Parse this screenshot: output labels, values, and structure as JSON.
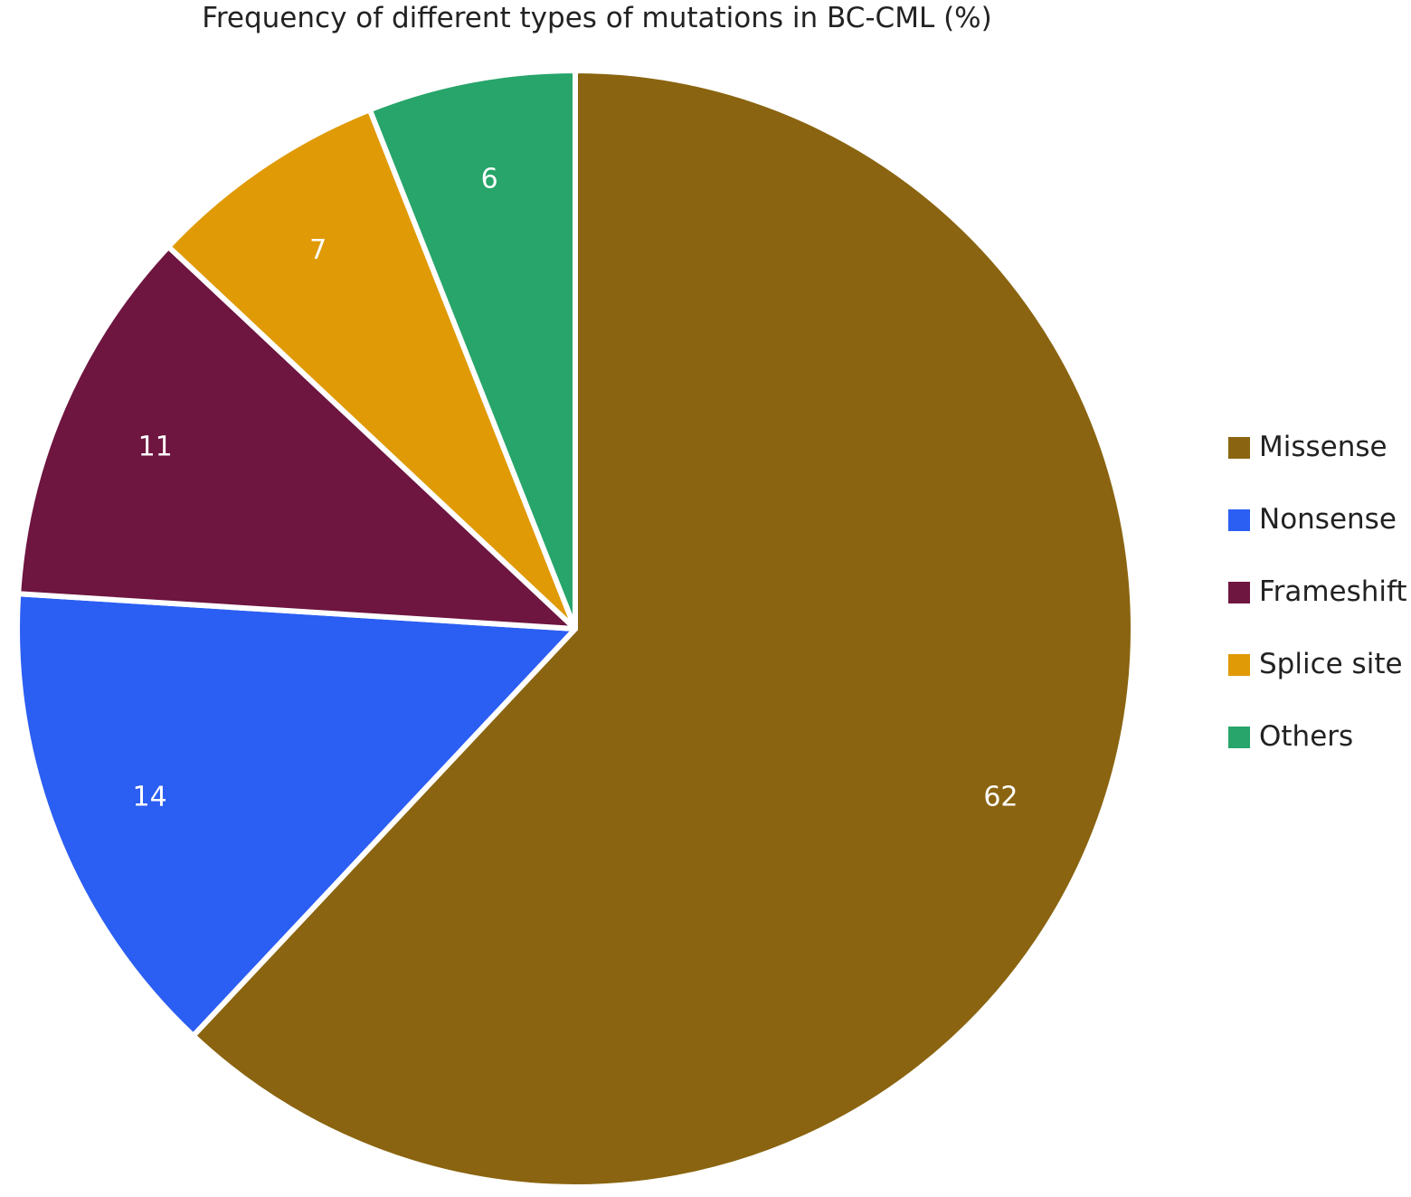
{
  "chart_data": {
    "type": "pie",
    "title": "Frequency of different types of mutations in BC-CML (%)",
    "legend_position": "right",
    "slices": [
      {
        "label": "Missense",
        "value": 62,
        "color": "#8A6410"
      },
      {
        "label": "Nonsense",
        "value": 14,
        "color": "#2B5EF2"
      },
      {
        "label": "Frameshift",
        "value": 11,
        "color": "#6E1540"
      },
      {
        "label": "Splice site",
        "value": 7,
        "color": "#E09A05"
      },
      {
        "label": "Others",
        "value": 6,
        "color": "#27A56A"
      }
    ],
    "label_color": "#ffffff"
  }
}
